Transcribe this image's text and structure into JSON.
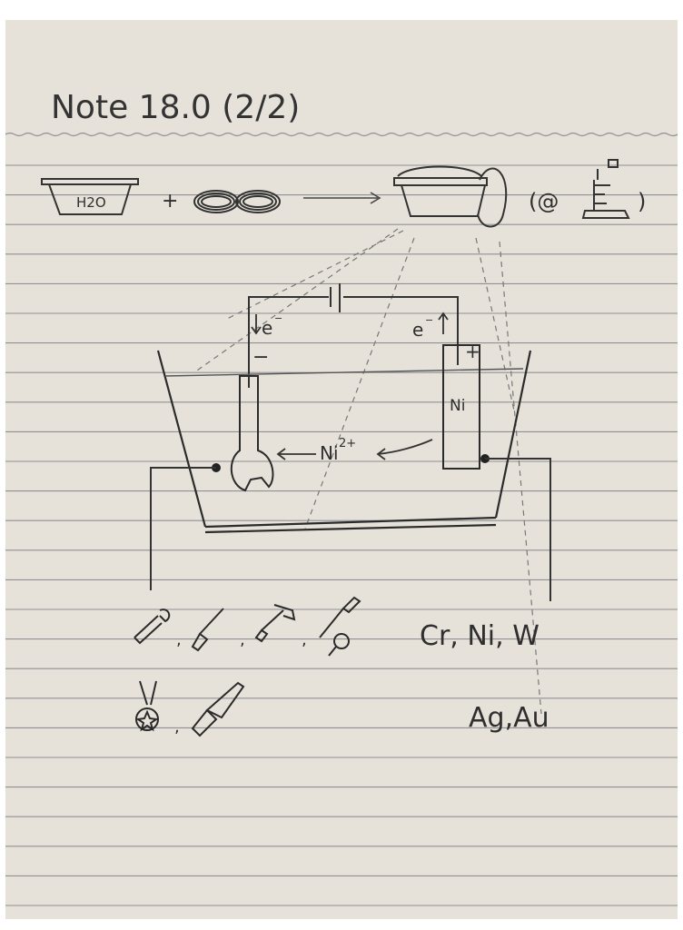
{
  "note": {
    "title": "Note 18.0 (2/2)"
  },
  "top_row": {
    "beaker_label": "H2O",
    "plus_sign": "+",
    "condition_label_open": "(@",
    "condition_label_close": ")"
  },
  "circuit": {
    "electron_left": "e",
    "electron_right": "e",
    "minus_sign": "−",
    "plus_sign": "+",
    "ion_label": "Ni",
    "ion_charge": "2+",
    "electrode_label": "Ni"
  },
  "bottom": {
    "metals_row1": "Cr, Ni, W",
    "metals_row2": "Ag,Au"
  },
  "colors": {
    "paper": "#e7e2d9",
    "ruled_line": "#8f8f94",
    "ink": "#2f2f2f"
  }
}
